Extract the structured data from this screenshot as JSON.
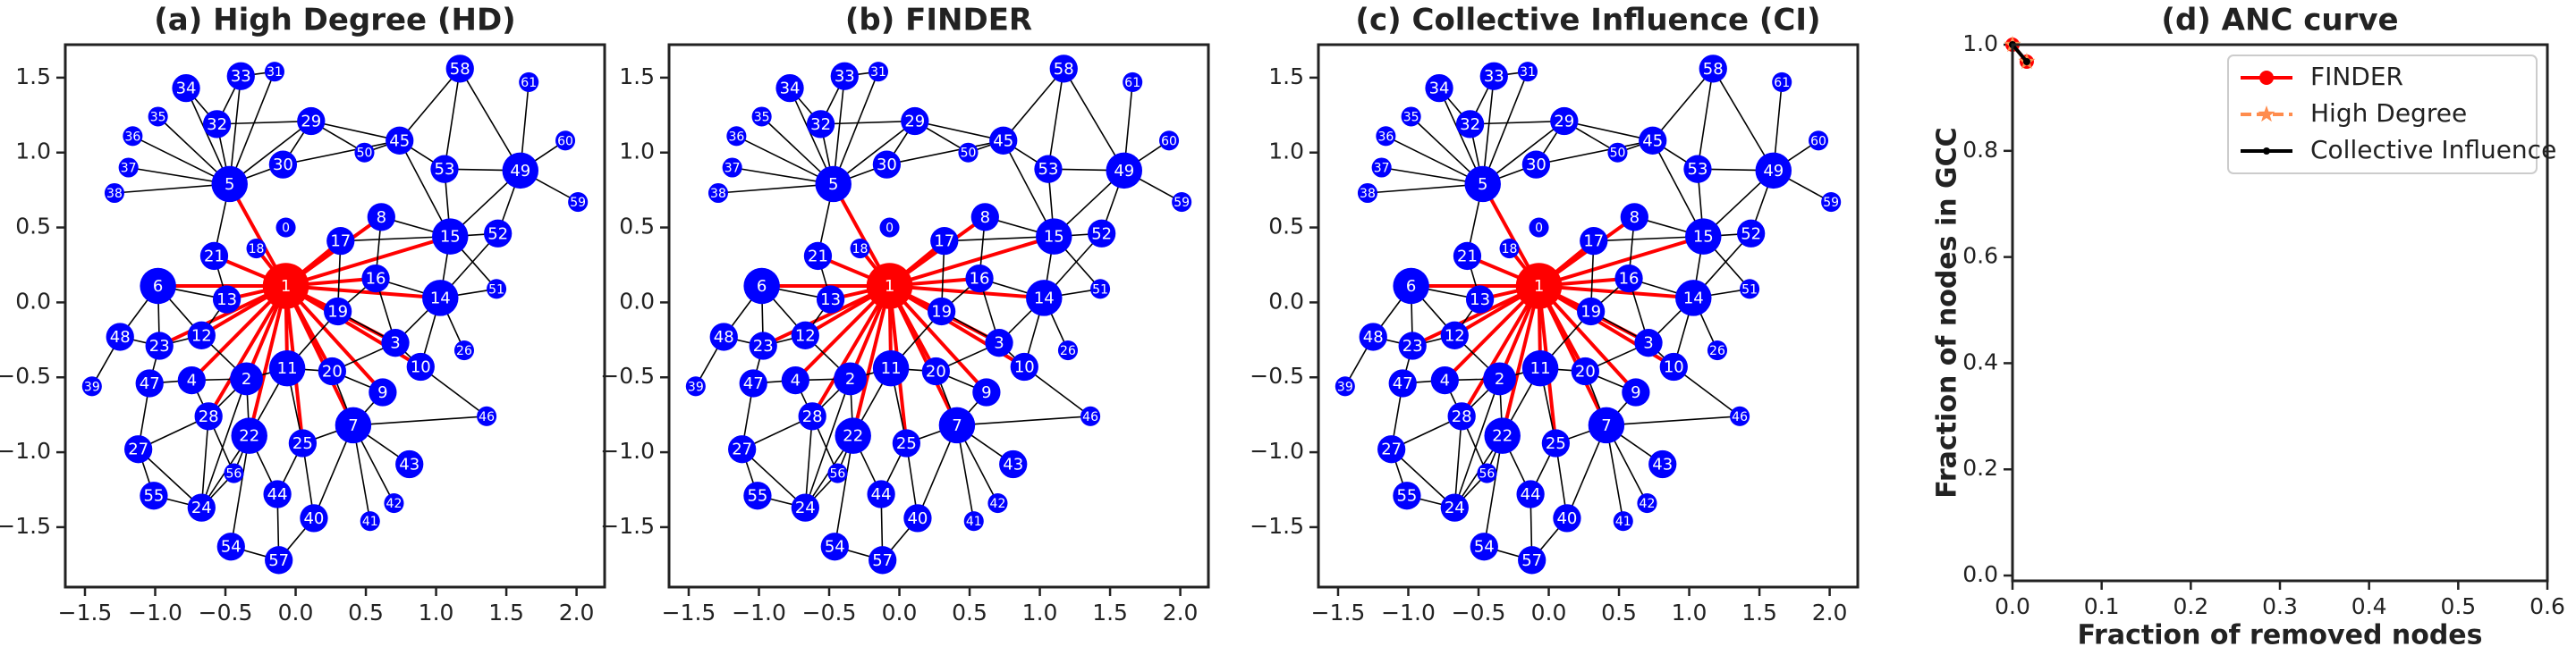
{
  "network": {
    "labels": [
      0,
      1,
      2,
      3,
      4,
      5,
      6,
      7,
      8,
      9,
      10,
      11,
      12,
      13,
      14,
      15,
      16,
      17,
      18,
      19,
      20,
      21,
      22,
      23,
      24,
      25,
      26,
      27,
      28,
      29,
      30,
      31,
      32,
      33,
      34,
      35,
      36,
      37,
      38,
      39,
      40,
      41,
      42,
      43,
      44,
      45,
      46,
      47,
      48,
      49,
      50,
      51,
      52,
      53,
      54,
      55,
      56,
      57,
      58,
      59,
      60,
      61
    ],
    "x": [
      -0.07,
      -0.07,
      -0.35,
      0.71,
      -0.74,
      -0.47,
      -0.98,
      0.41,
      0.61,
      0.62,
      0.89,
      -0.06,
      -0.67,
      -0.49,
      1.03,
      1.1,
      0.57,
      0.32,
      -0.28,
      0.3,
      0.26,
      -0.58,
      -0.33,
      -0.97,
      -0.67,
      0.05,
      1.2,
      -1.12,
      -0.62,
      0.11,
      -0.09,
      -0.15,
      -0.56,
      -0.39,
      -0.78,
      -0.98,
      -1.16,
      -1.19,
      -1.29,
      -1.45,
      0.13,
      0.53,
      0.7,
      0.81,
      -0.13,
      0.74,
      1.36,
      -1.04,
      -1.25,
      1.6,
      0.49,
      1.43,
      1.44,
      1.06,
      -0.46,
      -1.01,
      -0.44,
      -0.12,
      1.17,
      2.01,
      1.92,
      1.66
    ],
    "y": [
      0.5,
      0.11,
      -0.51,
      -0.27,
      -0.52,
      0.79,
      0.11,
      -0.82,
      0.57,
      -0.6,
      -0.43,
      -0.44,
      -0.22,
      0.02,
      0.03,
      0.44,
      0.16,
      0.41,
      0.36,
      -0.06,
      -0.46,
      0.31,
      -0.89,
      -0.29,
      -1.37,
      -0.94,
      -0.32,
      -0.98,
      -0.76,
      1.21,
      0.92,
      1.54,
      1.19,
      1.51,
      1.43,
      1.24,
      1.11,
      0.9,
      0.73,
      -0.56,
      -1.44,
      -1.46,
      -1.34,
      -1.08,
      -1.28,
      1.08,
      -0.76,
      -0.54,
      -0.23,
      0.88,
      1.0,
      0.09,
      0.46,
      0.89,
      -1.63,
      -1.29,
      -1.14,
      -1.72,
      1.56,
      0.67,
      1.08,
      1.47
    ],
    "sizes": [
      6,
      14,
      10,
      8.5,
      8.5,
      11,
      11,
      11,
      8.5,
      8.5,
      8.5,
      11,
      8.5,
      8.5,
      11,
      11,
      8.5,
      8.5,
      6,
      8.5,
      8.5,
      8.5,
      11,
      8.5,
      8.5,
      8.5,
      6,
      8.5,
      8.5,
      8.5,
      8.5,
      6,
      8.5,
      8.5,
      8.5,
      6,
      6,
      6,
      6,
      6,
      8.5,
      6,
      6,
      8.5,
      8.5,
      8.5,
      6,
      8.5,
      8.5,
      11,
      6,
      6,
      8.5,
      8.5,
      8.5,
      8.5,
      6,
      8.5,
      8.5,
      6,
      6,
      6
    ],
    "edges": [
      [
        1,
        5
      ],
      [
        1,
        6
      ],
      [
        1,
        13
      ],
      [
        1,
        21
      ],
      [
        1,
        18
      ],
      [
        1,
        12
      ],
      [
        1,
        2
      ],
      [
        1,
        4
      ],
      [
        1,
        11
      ],
      [
        1,
        19
      ],
      [
        1,
        16
      ],
      [
        1,
        17
      ],
      [
        1,
        14
      ],
      [
        1,
        15
      ],
      [
        1,
        3
      ],
      [
        1,
        20
      ],
      [
        1,
        9
      ],
      [
        1,
        7
      ],
      [
        1,
        25
      ],
      [
        1,
        22
      ],
      [
        1,
        28
      ],
      [
        1,
        8
      ],
      [
        1,
        23
      ],
      [
        1,
        10
      ],
      [
        5,
        32
      ],
      [
        5,
        34
      ],
      [
        5,
        35
      ],
      [
        5,
        36
      ],
      [
        5,
        37
      ],
      [
        5,
        38
      ],
      [
        5,
        33
      ],
      [
        5,
        29
      ],
      [
        5,
        30
      ],
      [
        5,
        21
      ],
      [
        5,
        31
      ],
      [
        32,
        34
      ],
      [
        32,
        33
      ],
      [
        32,
        29
      ],
      [
        33,
        31
      ],
      [
        29,
        30
      ],
      [
        29,
        45
      ],
      [
        29,
        50
      ],
      [
        30,
        45
      ],
      [
        45,
        58
      ],
      [
        45,
        53
      ],
      [
        45,
        15
      ],
      [
        45,
        50
      ],
      [
        53,
        15
      ],
      [
        53,
        49
      ],
      [
        53,
        58
      ],
      [
        49,
        58
      ],
      [
        49,
        61
      ],
      [
        49,
        60
      ],
      [
        49,
        59
      ],
      [
        49,
        52
      ],
      [
        49,
        15
      ],
      [
        15,
        52
      ],
      [
        15,
        14
      ],
      [
        15,
        51
      ],
      [
        52,
        14
      ],
      [
        14,
        51
      ],
      [
        14,
        16
      ],
      [
        14,
        26
      ],
      [
        14,
        10
      ],
      [
        15,
        17
      ],
      [
        15,
        8
      ],
      [
        16,
        19
      ],
      [
        17,
        19
      ],
      [
        8,
        16
      ],
      [
        6,
        13
      ],
      [
        6,
        23
      ],
      [
        6,
        12
      ],
      [
        6,
        48
      ],
      [
        13,
        12
      ],
      [
        13,
        21
      ],
      [
        12,
        23
      ],
      [
        12,
        2
      ],
      [
        23,
        48
      ],
      [
        23,
        47
      ],
      [
        48,
        39
      ],
      [
        47,
        4
      ],
      [
        47,
        27
      ],
      [
        4,
        2
      ],
      [
        4,
        28
      ],
      [
        2,
        11
      ],
      [
        2,
        22
      ],
      [
        2,
        28
      ],
      [
        11,
        20
      ],
      [
        11,
        19
      ],
      [
        11,
        22
      ],
      [
        11,
        25
      ],
      [
        20,
        3
      ],
      [
        20,
        9
      ],
      [
        3,
        10
      ],
      [
        3,
        14
      ],
      [
        9,
        7
      ],
      [
        7,
        43
      ],
      [
        7,
        42
      ],
      [
        7,
        41
      ],
      [
        7,
        40
      ],
      [
        7,
        46
      ],
      [
        7,
        25
      ],
      [
        25,
        44
      ],
      [
        25,
        40
      ],
      [
        22,
        24
      ],
      [
        22,
        56
      ],
      [
        22,
        44
      ],
      [
        22,
        54
      ],
      [
        24,
        28
      ],
      [
        24,
        27
      ],
      [
        24,
        55
      ],
      [
        27,
        55
      ],
      [
        27,
        28
      ],
      [
        28,
        56
      ],
      [
        44,
        57
      ],
      [
        40,
        57
      ],
      [
        54,
        57
      ],
      [
        56,
        24
      ],
      [
        10,
        46
      ],
      [
        19,
        3
      ],
      [
        16,
        3
      ],
      [
        20,
        7
      ],
      [
        2,
        24
      ]
    ],
    "removed": [
      1
    ],
    "node_color": "#0000ff",
    "removed_color": "#ff0000",
    "edge_color": "#000000",
    "label_color": "#ffffff"
  },
  "chart_data": [
    {
      "type": "network",
      "title": "(a) High Degree (HD)",
      "xlim": [
        -1.64,
        2.2
      ],
      "ylim": [
        -1.9,
        1.72
      ],
      "xticks": [
        {
          "value": -1.5,
          "label": "−1.5"
        },
        {
          "value": -1,
          "label": "−1.0"
        },
        {
          "value": -0.5,
          "label": "−0.5"
        },
        {
          "value": 0,
          "label": "0.0"
        },
        {
          "value": 0.5,
          "label": "0.5"
        },
        {
          "value": 1,
          "label": "1.0"
        },
        {
          "value": 1.5,
          "label": "1.5"
        },
        {
          "value": 2,
          "label": "2.0"
        }
      ],
      "yticks": [
        {
          "value": -1.5,
          "label": "−1.5"
        },
        {
          "value": -1,
          "label": "−1.0"
        },
        {
          "value": -0.5,
          "label": "−0.5"
        },
        {
          "value": 0,
          "label": "0.0"
        },
        {
          "value": 0.5,
          "label": "0.5"
        },
        {
          "value": 1,
          "label": "1.0"
        },
        {
          "value": 1.5,
          "label": "1.5"
        }
      ]
    },
    {
      "type": "network",
      "title": "(b) FINDER",
      "xlim": [
        -1.64,
        2.2
      ],
      "ylim": [
        -1.9,
        1.72
      ],
      "xticks": [
        {
          "value": -1.5,
          "label": "−1.5"
        },
        {
          "value": -1,
          "label": "−1.0"
        },
        {
          "value": -0.5,
          "label": "−0.5"
        },
        {
          "value": 0,
          "label": "0.0"
        },
        {
          "value": 0.5,
          "label": "0.5"
        },
        {
          "value": 1,
          "label": "1.0"
        },
        {
          "value": 1.5,
          "label": "1.5"
        },
        {
          "value": 2,
          "label": "2.0"
        }
      ],
      "yticks": [
        {
          "value": -1.5,
          "label": "−1.5"
        },
        {
          "value": -1,
          "label": "−1.0"
        },
        {
          "value": -0.5,
          "label": "−0.5"
        },
        {
          "value": 0,
          "label": "0.0"
        },
        {
          "value": 0.5,
          "label": "0.5"
        },
        {
          "value": 1,
          "label": "1.0"
        },
        {
          "value": 1.5,
          "label": "1.5"
        }
      ]
    },
    {
      "type": "network",
      "title": "(c) Collective Influence (CI)",
      "xlim": [
        -1.64,
        2.2
      ],
      "ylim": [
        -1.9,
        1.72
      ],
      "xticks": [
        {
          "value": -1.5,
          "label": "−1.5"
        },
        {
          "value": -1,
          "label": "−1.0"
        },
        {
          "value": -0.5,
          "label": "−0.5"
        },
        {
          "value": 0,
          "label": "0.0"
        },
        {
          "value": 0.5,
          "label": "0.5"
        },
        {
          "value": 1,
          "label": "1.0"
        },
        {
          "value": 1.5,
          "label": "1.5"
        },
        {
          "value": 2,
          "label": "2.0"
        }
      ],
      "yticks": [
        {
          "value": -1.5,
          "label": "−1.5"
        },
        {
          "value": -1,
          "label": "−1.0"
        },
        {
          "value": -0.5,
          "label": "−0.5"
        },
        {
          "value": 0,
          "label": "0.0"
        },
        {
          "value": 0.5,
          "label": "0.5"
        },
        {
          "value": 1,
          "label": "1.0"
        },
        {
          "value": 1.5,
          "label": "1.5"
        }
      ]
    },
    {
      "type": "line",
      "title": "(d) ANC curve",
      "xlabel": "Fraction of removed nodes",
      "ylabel": "Fraction of nodes in GCC",
      "xlim": [
        0,
        0.6
      ],
      "ylim": [
        -0.01,
        1.0
      ],
      "xticks": [
        {
          "value": 0,
          "label": "0.0"
        },
        0.1,
        0.2,
        0.3,
        0.4,
        0.5,
        0.6
      ],
      "yticks": [
        {
          "value": 0,
          "label": "0.0"
        },
        0.2,
        0.4,
        0.6,
        0.8,
        {
          "value": 1,
          "label": "1.0"
        }
      ],
      "legend": "upper right",
      "series": [
        {
          "name": "FINDER",
          "color": "#ff0000",
          "marker": "circle",
          "dash": "solid",
          "x": [
            0,
            0.016
          ],
          "values": [
            1.0,
            0.968
          ]
        },
        {
          "name": "High Degree",
          "color": "#ff8c4d",
          "marker": "star",
          "dash": "dashed",
          "x": [
            0,
            0.016
          ],
          "values": [
            1.0,
            0.968
          ]
        },
        {
          "name": "Collective Influence",
          "color": "#000000",
          "marker": "dot",
          "dash": "solid",
          "x": [
            0,
            0.016
          ],
          "values": [
            1.0,
            0.968
          ]
        }
      ]
    }
  ]
}
